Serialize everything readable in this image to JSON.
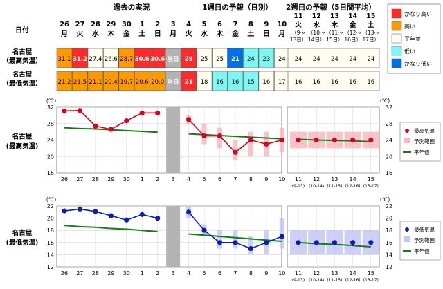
{
  "headers": {
    "past": "過去の実況",
    "week1": "1週目の予報（日別）",
    "week2": "2週目の予報（5日間平均）",
    "date_label": "日付"
  },
  "rows": {
    "max_label": [
      "名古屋",
      "（最高気温）"
    ],
    "min_label": [
      "名古屋",
      "（最低気温）"
    ]
  },
  "daily_days": [
    {
      "d": "26",
      "w": "月"
    },
    {
      "d": "27",
      "w": "火"
    },
    {
      "d": "28",
      "w": "水"
    },
    {
      "d": "29",
      "w": "木"
    },
    {
      "d": "30",
      "w": "金"
    },
    {
      "d": "1",
      "w": "土"
    },
    {
      "d": "2",
      "w": "日"
    },
    {
      "d": "3",
      "w": "月"
    },
    {
      "d": "4",
      "w": "火"
    },
    {
      "d": "5",
      "w": "水"
    },
    {
      "d": "6",
      "w": "木"
    },
    {
      "d": "7",
      "w": "金"
    },
    {
      "d": "8",
      "w": "土"
    },
    {
      "d": "9",
      "w": "日"
    },
    {
      "d": "10",
      "w": "月"
    }
  ],
  "week2_days": [
    {
      "d": "11",
      "w": "火",
      "r1": "（9～",
      "r2": "13日）"
    },
    {
      "d": "12",
      "w": "水",
      "r1": "（10～",
      "r2": "14日）"
    },
    {
      "d": "13",
      "w": "木",
      "r1": "（11～",
      "r2": "15日）"
    },
    {
      "d": "14",
      "w": "金",
      "r1": "（12～",
      "r2": "16日）"
    },
    {
      "d": "15",
      "w": "土",
      "r1": "（13～",
      "r2": "17日）"
    }
  ],
  "max_values": [
    "31.1",
    "31.2",
    "27.4",
    "26.6",
    "28.7",
    "30.6",
    "30.6",
    "当日",
    "29",
    "25",
    "25",
    "21",
    "24",
    "23",
    "24"
  ],
  "min_values": [
    "21.2",
    "21.5",
    "21.1",
    "20.4",
    "19.7",
    "20.6",
    "20.0",
    "当日",
    "21",
    "18",
    "16",
    "16",
    "15",
    "16",
    "17"
  ],
  "max_w2_values": [
    "24",
    "24",
    "24",
    "24",
    "24"
  ],
  "min_w2_values": [
    "16",
    "16",
    "16",
    "16",
    "16"
  ],
  "legend_table": [
    "かなり高い",
    "高い",
    "平年並",
    "低い",
    "かなり低い"
  ],
  "colors": {
    "very_high": "#ff2a2a",
    "high": "#ff9900",
    "normal": "#fffcf0",
    "low": "#7ff6f2",
    "very_low": "#0070e8",
    "today_gray": "#b3b3b3",
    "max_line": "#d9001b",
    "min_line": "#0b1cbf",
    "normal_line": "#137d13",
    "max_range": "#f8b8bd",
    "min_range": "#c5c7f5"
  },
  "chart_labels": {
    "unit": "(℃)",
    "max_title": [
      "名古屋",
      "(最高気温)"
    ],
    "min_title": [
      "名古屋",
      "(最低気温)"
    ],
    "max_legend": [
      "最高気温",
      "予測範囲",
      "平年値"
    ],
    "min_legend": [
      "最低気温",
      "予測範囲",
      "平年値"
    ]
  },
  "chart_data": [
    {
      "type": "line",
      "title": "名古屋 (最高気温)",
      "ylabel": "(℃)",
      "ylim": [
        16,
        32
      ],
      "yticks": [
        16,
        20,
        24,
        28,
        32
      ],
      "x": [
        "26",
        "27",
        "28",
        "29",
        "30",
        "1",
        "2",
        "3",
        "4",
        "5",
        "6",
        "7",
        "8",
        "9",
        "10"
      ],
      "observed": {
        "x": [
          "26",
          "27",
          "28",
          "29",
          "30",
          "1",
          "2"
        ],
        "values": [
          31.1,
          31.2,
          27.4,
          26.6,
          28.7,
          30.6,
          30.6
        ]
      },
      "forecast": {
        "x": [
          "4",
          "5",
          "6",
          "7",
          "8",
          "9",
          "10"
        ],
        "values": [
          29,
          25,
          25,
          21,
          24,
          23,
          24
        ]
      },
      "forecast_range": [
        [
          28,
          30
        ],
        [
          23,
          28
        ],
        [
          22,
          27
        ],
        [
          19,
          24
        ],
        [
          20,
          26
        ],
        [
          20,
          26
        ],
        [
          21,
          27
        ]
      ],
      "normal_past": [
        27.0,
        26.8,
        26.7,
        26.5,
        26.3,
        26.1,
        25.9
      ],
      "normal_week1": [
        25.5,
        25.3,
        25.1,
        24.9,
        24.7,
        24.5,
        24.3
      ],
      "week2": {
        "x": [
          "11",
          "12",
          "13",
          "14",
          "15"
        ],
        "x_ranges": [
          "(9-13)",
          "(10-14)",
          "(11-15)",
          "(12-16)",
          "(13-17)"
        ],
        "values": [
          24,
          24,
          24,
          24,
          24
        ],
        "range": [
          [
            22,
            26
          ],
          [
            22,
            26
          ],
          [
            22,
            26
          ],
          [
            22,
            26
          ],
          [
            22,
            26
          ]
        ],
        "normal": [
          24.2,
          24.0,
          23.9,
          23.8,
          23.6
        ]
      },
      "legend": [
        "最高気温",
        "予測範囲",
        "平年値"
      ]
    },
    {
      "type": "line",
      "title": "名古屋 (最低気温)",
      "ylabel": "(℃)",
      "ylim": [
        12,
        22
      ],
      "yticks": [
        12,
        14,
        16,
        18,
        20,
        22
      ],
      "x": [
        "26",
        "27",
        "28",
        "29",
        "30",
        "1",
        "2",
        "3",
        "4",
        "5",
        "6",
        "7",
        "8",
        "9",
        "10"
      ],
      "observed": {
        "x": [
          "26",
          "27",
          "28",
          "29",
          "30",
          "1",
          "2"
        ],
        "values": [
          21.2,
          21.5,
          21.1,
          20.4,
          19.7,
          20.6,
          20.0
        ]
      },
      "forecast": {
        "x": [
          "4",
          "5",
          "6",
          "7",
          "8",
          "9",
          "10"
        ],
        "values": [
          21,
          18,
          16,
          16,
          15,
          16,
          17
        ]
      },
      "forecast_range": [
        [
          20,
          22
        ],
        [
          17,
          19
        ],
        [
          15,
          18
        ],
        [
          15,
          18
        ],
        [
          14,
          17
        ],
        [
          14,
          18
        ],
        [
          15,
          20
        ]
      ],
      "normal_past": [
        18.8,
        18.6,
        18.5,
        18.3,
        18.2,
        18.0,
        17.8
      ],
      "normal_week1": [
        17.4,
        17.2,
        17.0,
        16.8,
        16.6,
        16.4,
        16.2
      ],
      "week2": {
        "x": [
          "11",
          "12",
          "13",
          "14",
          "15"
        ],
        "x_ranges": [
          "(9-13)",
          "(10-14)",
          "(11-15)",
          "(12-16)",
          "(13-17)"
        ],
        "values": [
          16,
          16,
          16,
          16,
          16
        ],
        "range": [
          [
            14,
            18
          ],
          [
            14,
            18
          ],
          [
            14,
            18
          ],
          [
            14,
            18
          ],
          [
            14,
            18
          ]
        ],
        "normal": [
          16.0,
          15.8,
          15.7,
          15.5,
          15.3
        ]
      },
      "legend": [
        "最低気温",
        "予測範囲",
        "平年値"
      ]
    }
  ]
}
